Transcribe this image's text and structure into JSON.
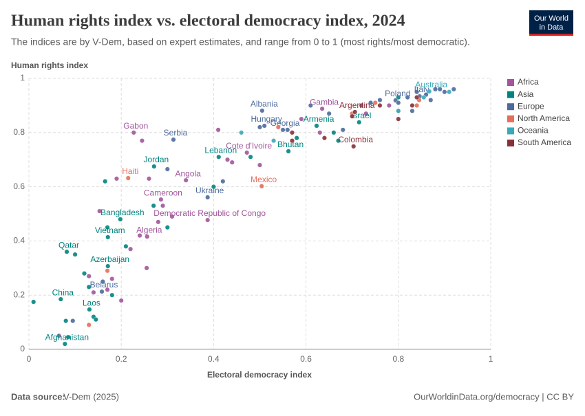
{
  "header": {
    "title": "Human rights index vs. electoral democracy index, 2024",
    "subtitle": "The indices are by V-Dem, based on expert estimates, and range from 0 to 1 (most rights/most democratic).",
    "logo": [
      "Our World",
      "in Data"
    ]
  },
  "footer": {
    "source_label": "Data source:",
    "source": "V-Dem (2025)",
    "url": "OurWorldinData.org/democracy | CC BY"
  },
  "chart_data": {
    "type": "scatter",
    "y_label": "Human rights index",
    "x_label": "Electoral democracy index",
    "xlim": [
      0,
      1
    ],
    "ylim": [
      0,
      1
    ],
    "xticks": [
      0,
      0.2,
      0.4,
      0.6,
      0.8,
      1
    ],
    "yticks": [
      0,
      0.2,
      0.4,
      0.6,
      0.8,
      1
    ],
    "grid": true,
    "legend": "right",
    "series": [
      {
        "name": "Africa",
        "color": "#a2559c",
        "x": [
          0.635,
          0.227,
          0.472,
          0.34,
          0.286,
          0.387,
          0.256,
          0.065,
          0.153,
          0.19,
          0.245,
          0.26,
          0.29,
          0.31,
          0.28,
          0.24,
          0.22,
          0.2,
          0.13,
          0.14,
          0.18,
          0.41,
          0.43,
          0.44,
          0.5,
          0.59,
          0.63,
          0.73,
          0.78,
          0.255,
          0.17
        ],
        "values": [
          0.888,
          0.8,
          0.726,
          0.624,
          0.553,
          0.477,
          0.416,
          0.05,
          0.51,
          0.63,
          0.77,
          0.63,
          0.53,
          0.49,
          0.47,
          0.42,
          0.37,
          0.18,
          0.27,
          0.21,
          0.26,
          0.81,
          0.7,
          0.69,
          0.68,
          0.85,
          0.8,
          0.87,
          0.9,
          0.3,
          0.22
        ],
        "labels": [
          "Gambia",
          "Gabon",
          "Cote d'Ivoire",
          "Angola",
          "Cameroon",
          "Democratic Republic of Congo",
          "Algeria",
          null,
          null,
          null,
          null,
          null,
          null,
          null,
          null,
          null,
          null,
          null,
          null,
          null,
          null,
          null,
          null,
          null,
          null,
          null,
          null,
          null,
          null,
          null,
          null
        ]
      },
      {
        "name": "Asia",
        "color": "#00847e",
        "x": [
          0.715,
          0.623,
          0.562,
          0.271,
          0.411,
          0.198,
          0.171,
          0.082,
          0.171,
          0.069,
          0.131,
          0.078,
          0.01,
          0.08,
          0.1,
          0.12,
          0.13,
          0.14,
          0.145,
          0.165,
          0.17,
          0.21,
          0.27,
          0.3,
          0.4,
          0.48,
          0.58,
          0.67,
          0.66,
          0.8,
          0.18,
          0.085
        ],
        "values": [
          0.838,
          0.825,
          0.731,
          0.675,
          0.71,
          0.48,
          0.414,
          0.36,
          0.307,
          0.185,
          0.147,
          0.02,
          0.175,
          0.105,
          0.35,
          0.28,
          0.23,
          0.12,
          0.11,
          0.62,
          0.45,
          0.38,
          0.53,
          0.45,
          0.6,
          0.71,
          0.78,
          0.77,
          0.8,
          0.93,
          0.2,
          0.045
        ],
        "labels": [
          "Israel",
          "Armenia",
          "Bhutan",
          "Jordan",
          "Lebanon",
          "Bangladesh",
          "Vietnam",
          "Qatar",
          "Azerbaijan",
          "China",
          "Laos",
          "Afghanistan",
          null,
          null,
          null,
          null,
          null,
          null,
          null,
          null,
          null,
          null,
          null,
          null,
          null,
          null,
          null,
          null,
          null,
          null,
          null,
          null
        ]
      },
      {
        "name": "Europe",
        "color": "#4c6a9c",
        "x": [
          0.505,
          0.794,
          0.846,
          0.51,
          0.55,
          0.313,
          0.387,
          0.158,
          0.095,
          0.16,
          0.3,
          0.42,
          0.5,
          0.56,
          0.61,
          0.65,
          0.68,
          0.72,
          0.74,
          0.76,
          0.8,
          0.82,
          0.83,
          0.84,
          0.86,
          0.87,
          0.88,
          0.89,
          0.9,
          0.92
        ],
        "values": [
          0.881,
          0.919,
          0.934,
          0.825,
          0.81,
          0.774,
          0.561,
          0.213,
          0.105,
          0.25,
          0.665,
          0.62,
          0.82,
          0.81,
          0.9,
          0.87,
          0.81,
          0.9,
          0.91,
          0.92,
          0.91,
          0.93,
          0.88,
          0.95,
          0.94,
          0.92,
          0.96,
          0.96,
          0.95,
          0.96
        ],
        "labels": [
          "Albania",
          "Poland",
          "Italy",
          "Hungary",
          "Georgia",
          "Serbia",
          "Ukraine",
          "Belarus",
          null,
          null,
          null,
          null,
          null,
          null,
          null,
          null,
          null,
          null,
          null,
          null,
          null,
          null,
          null,
          null,
          null,
          null,
          null,
          null,
          null,
          null
        ]
      },
      {
        "name": "North America",
        "color": "#e56e5a",
        "x": [
          0.215,
          0.504,
          0.13,
          0.17,
          0.54,
          0.7,
          0.75,
          0.8,
          0.84,
          0.845
        ],
        "values": [
          0.632,
          0.602,
          0.09,
          0.29,
          0.82,
          0.87,
          0.91,
          0.88,
          0.9,
          0.92
        ],
        "labels": [
          "Haiti",
          "Mexico",
          null,
          null,
          null,
          null,
          null,
          null,
          null,
          null
        ]
      },
      {
        "name": "Oceania",
        "color": "#38aaba",
        "x": [
          0.867,
          0.46,
          0.53,
          0.8,
          0.855,
          0.91
        ],
        "values": [
          0.952,
          0.8,
          0.77,
          0.88,
          0.93,
          0.95
        ],
        "labels": [
          "Australia",
          null,
          null,
          null,
          null,
          null
        ]
      },
      {
        "name": "South America",
        "color": "#883039",
        "x": [
          0.706,
          0.703,
          0.57,
          0.57,
          0.64,
          0.7,
          0.76,
          0.8,
          0.83,
          0.84
        ],
        "values": [
          0.876,
          0.749,
          0.8,
          0.77,
          0.78,
          0.86,
          0.9,
          0.85,
          0.9,
          0.93
        ],
        "labels": [
          "Argentina",
          "Colombia",
          null,
          null,
          null,
          null,
          null,
          null,
          null,
          null
        ]
      }
    ]
  }
}
